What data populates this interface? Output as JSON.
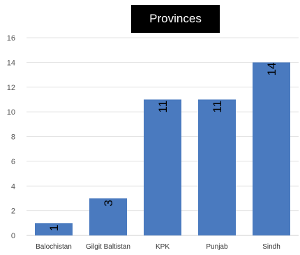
{
  "chart_data": {
    "type": "bar",
    "title": "Provinces",
    "xlabel": "",
    "ylabel": "",
    "categories": [
      "Balochistan",
      "Gilgit Baltistan",
      "KPK",
      "Punjab",
      "Sindh"
    ],
    "values": [
      1,
      3,
      11,
      11,
      14
    ],
    "data_labels": [
      "1",
      "3",
      "11",
      "11",
      "14"
    ],
    "ylim": [
      0,
      16
    ],
    "yticks": [
      "0",
      "2",
      "4",
      "6",
      "8",
      "10",
      "12",
      "14",
      "16"
    ],
    "grid": true,
    "legend": "none",
    "colors": {
      "bar": "#4a7abf",
      "grid": "#e3e3e3",
      "tick_text": "#555555",
      "title_bg": "#000000",
      "title_text": "#ffffff"
    }
  }
}
